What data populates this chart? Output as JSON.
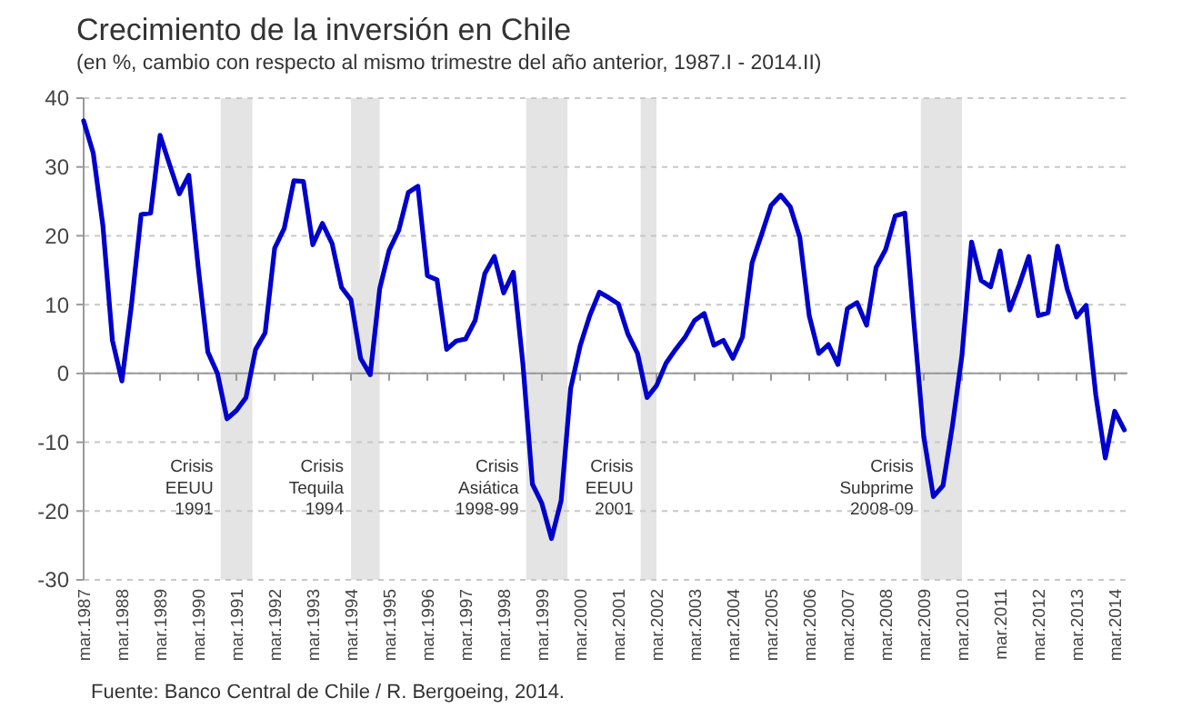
{
  "chart_data": {
    "type": "line",
    "title": "Crecimiento de la inversión en Chile",
    "subtitle": "(en %, cambio con respecto  al mismo trimestre  del año anterior, 1987.I - 2014.II)",
    "x": [
      "1987-03",
      "1987-06",
      "1987-09",
      "1987-12",
      "1988-03",
      "1988-06",
      "1988-09",
      "1988-12",
      "1989-03",
      "1989-06",
      "1989-09",
      "1989-12",
      "1990-03",
      "1990-06",
      "1990-09",
      "1990-12",
      "1991-03",
      "1991-06",
      "1991-09",
      "1991-12",
      "1992-03",
      "1992-06",
      "1992-09",
      "1992-12",
      "1993-03",
      "1993-06",
      "1993-09",
      "1993-12",
      "1994-03",
      "1994-06",
      "1994-09",
      "1994-12",
      "1995-03",
      "1995-06",
      "1995-09",
      "1995-12",
      "1996-03",
      "1996-06",
      "1996-09",
      "1996-12",
      "1997-03",
      "1997-06",
      "1997-09",
      "1997-12",
      "1998-03",
      "1998-06",
      "1998-09",
      "1998-12",
      "1999-03",
      "1999-06",
      "1999-09",
      "1999-12",
      "2000-03",
      "2000-06",
      "2000-09",
      "2000-12",
      "2001-03",
      "2001-06",
      "2001-09",
      "2001-12",
      "2002-03",
      "2002-06",
      "2002-09",
      "2002-12",
      "2003-03",
      "2003-06",
      "2003-09",
      "2003-12",
      "2004-03",
      "2004-06",
      "2004-09",
      "2004-12",
      "2005-03",
      "2005-06",
      "2005-09",
      "2005-12",
      "2006-03",
      "2006-06",
      "2006-09",
      "2006-12",
      "2007-03",
      "2007-06",
      "2007-09",
      "2007-12",
      "2008-03",
      "2008-06",
      "2008-09",
      "2008-12",
      "2009-03",
      "2009-06",
      "2009-09",
      "2009-12",
      "2010-03",
      "2010-06",
      "2010-09",
      "2010-12",
      "2011-03",
      "2011-06",
      "2011-09",
      "2011-12",
      "2012-03",
      "2012-06",
      "2012-09",
      "2012-12",
      "2013-03",
      "2013-06",
      "2013-09",
      "2013-12",
      "2014-03",
      "2014-06"
    ],
    "series": [
      {
        "color": "#0000cc",
        "values": [
          36.7,
          32,
          21.5,
          4.8,
          -1.1,
          10,
          23.1,
          23.3,
          34.6,
          30.3,
          26.1,
          28.8,
          15.4,
          3.1,
          0,
          -6.6,
          -5.4,
          -3.5,
          3.5,
          5.9,
          18.2,
          21.1,
          28,
          27.9,
          18.7,
          21.8,
          18.9,
          12.5,
          10.7,
          2.2,
          -0.2,
          12.3,
          17.9,
          20.8,
          26.3,
          27.2,
          14.2,
          13.6,
          3.5,
          4.7,
          5,
          7.7,
          14.5,
          17,
          11.7,
          14.7,
          1.3,
          -16.1,
          -18.9,
          -24,
          -18.5,
          -2.2,
          4,
          8.4,
          11.8,
          11,
          10.1,
          5.7,
          2.9,
          -3.5,
          -1.8,
          1.5,
          3.5,
          5.3,
          7.7,
          8.7,
          4.1,
          4.8,
          2.2,
          5.3,
          16.1,
          20.2,
          24.4,
          25.9,
          24.2,
          19.8,
          8.4,
          2.9,
          4.2,
          1.3,
          9.4,
          10.3,
          7,
          15.4,
          18,
          22.9,
          23.3,
          6.6,
          -9.2,
          -17.9,
          -16.3,
          -7.5,
          2.6,
          19.1,
          13.5,
          12.6,
          17.8,
          9.2,
          12.9,
          17,
          8.4,
          8.8,
          18.5,
          12.3,
          8.2,
          9.9,
          -3.1,
          -12.3,
          -5.5,
          -8.2
        ]
      }
    ],
    "xlim": [
      "1987-03",
      "2014-07"
    ],
    "ylim": [
      -30,
      40
    ],
    "yticks": [
      -30,
      -20,
      -10,
      0,
      10,
      20,
      30,
      40
    ],
    "xticks": [
      {
        "value": "1987-03",
        "label": "mar.1987"
      },
      {
        "value": "1988-03",
        "label": "mar.1988"
      },
      {
        "value": "1989-03",
        "label": "mar.1989"
      },
      {
        "value": "1990-03",
        "label": "mar.1990"
      },
      {
        "value": "1991-03",
        "label": "mar.1991"
      },
      {
        "value": "1992-03",
        "label": "mar.1992"
      },
      {
        "value": "1993-03",
        "label": "mar.1993"
      },
      {
        "value": "1994-03",
        "label": "mar.1994"
      },
      {
        "value": "1995-03",
        "label": "mar.1995"
      },
      {
        "value": "1996-03",
        "label": "mar.1996"
      },
      {
        "value": "1997-03",
        "label": "mar.1997"
      },
      {
        "value": "1998-03",
        "label": "mar.1998"
      },
      {
        "value": "1999-03",
        "label": "mar.1999"
      },
      {
        "value": "2000-03",
        "label": "mar.2000"
      },
      {
        "value": "2001-03",
        "label": "mar.2001"
      },
      {
        "value": "2002-03",
        "label": "mar.2002"
      },
      {
        "value": "2003-03",
        "label": "mar.2003"
      },
      {
        "value": "2004-03",
        "label": "mar.2004"
      },
      {
        "value": "2005-03",
        "label": "mar.2005"
      },
      {
        "value": "2006-03",
        "label": "mar.2006"
      },
      {
        "value": "2007-03",
        "label": "mar.2007"
      },
      {
        "value": "2008-03",
        "label": "mar.2008"
      },
      {
        "value": "2009-03",
        "label": "mar.2009"
      },
      {
        "value": "2010-03",
        "label": "mar.2010"
      },
      {
        "value": "2011-03",
        "label": "mar.2011"
      },
      {
        "value": "2012-03",
        "label": "mar.2012"
      },
      {
        "value": "2013-03",
        "label": "mar.2013"
      },
      {
        "value": "2014-03",
        "label": "mar.2014"
      }
    ],
    "grid": "y",
    "line_style": "solid",
    "bands": [
      {
        "axis": "x",
        "from": "1990-10",
        "to": "1991-08",
        "color": "#e4e4e4",
        "label": "Crisis\nEEUU\n1991"
      },
      {
        "axis": "x",
        "from": "1994-03",
        "to": "1994-12",
        "color": "#e4e4e4",
        "label": "Crisis\nTequila\n1994"
      },
      {
        "axis": "x",
        "from": "1998-10",
        "to": "1999-11",
        "color": "#e4e4e4",
        "label": "Crisis\nAsiática\n1998-99"
      },
      {
        "axis": "x",
        "from": "2001-10",
        "to": "2002-03",
        "color": "#e4e4e4",
        "label": "Crisis\nEEUU\n2001"
      },
      {
        "axis": "x",
        "from": "2009-02",
        "to": "2010-03",
        "color": "#e4e4e4",
        "label": "Crisis\nSubprime\n2008-09"
      }
    ],
    "annotations": [
      "Fuente: Banco Central de Chile / R. Bergoeing, 2014."
    ]
  }
}
